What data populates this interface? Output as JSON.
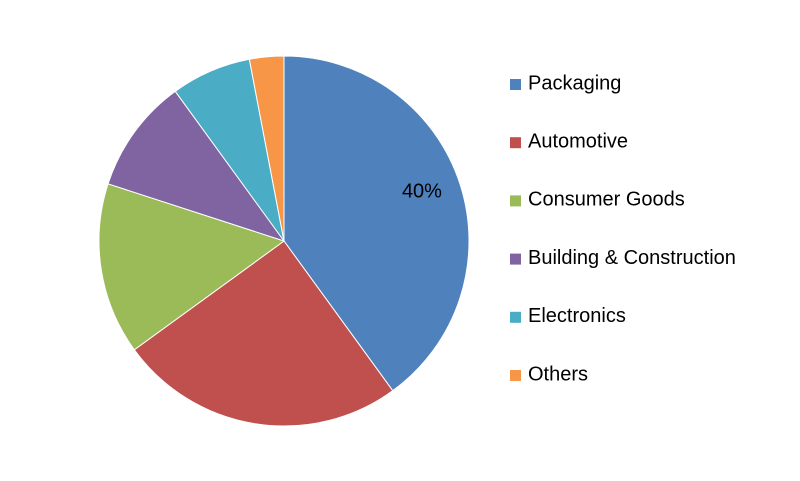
{
  "chart_data": {
    "type": "pie",
    "categories": [
      "Packaging",
      "Automotive",
      "Consumer Goods",
      "Building & Construction",
      "Electronics",
      "Others"
    ],
    "values": [
      40,
      25,
      15,
      10,
      7,
      3
    ],
    "value_labels": [
      "40%",
      null,
      null,
      null,
      null,
      null
    ],
    "colors": [
      "#4f81bd",
      "#c0504d",
      "#9bbb59",
      "#8064a2",
      "#4bacc6",
      "#f79646"
    ],
    "legend": "right"
  }
}
